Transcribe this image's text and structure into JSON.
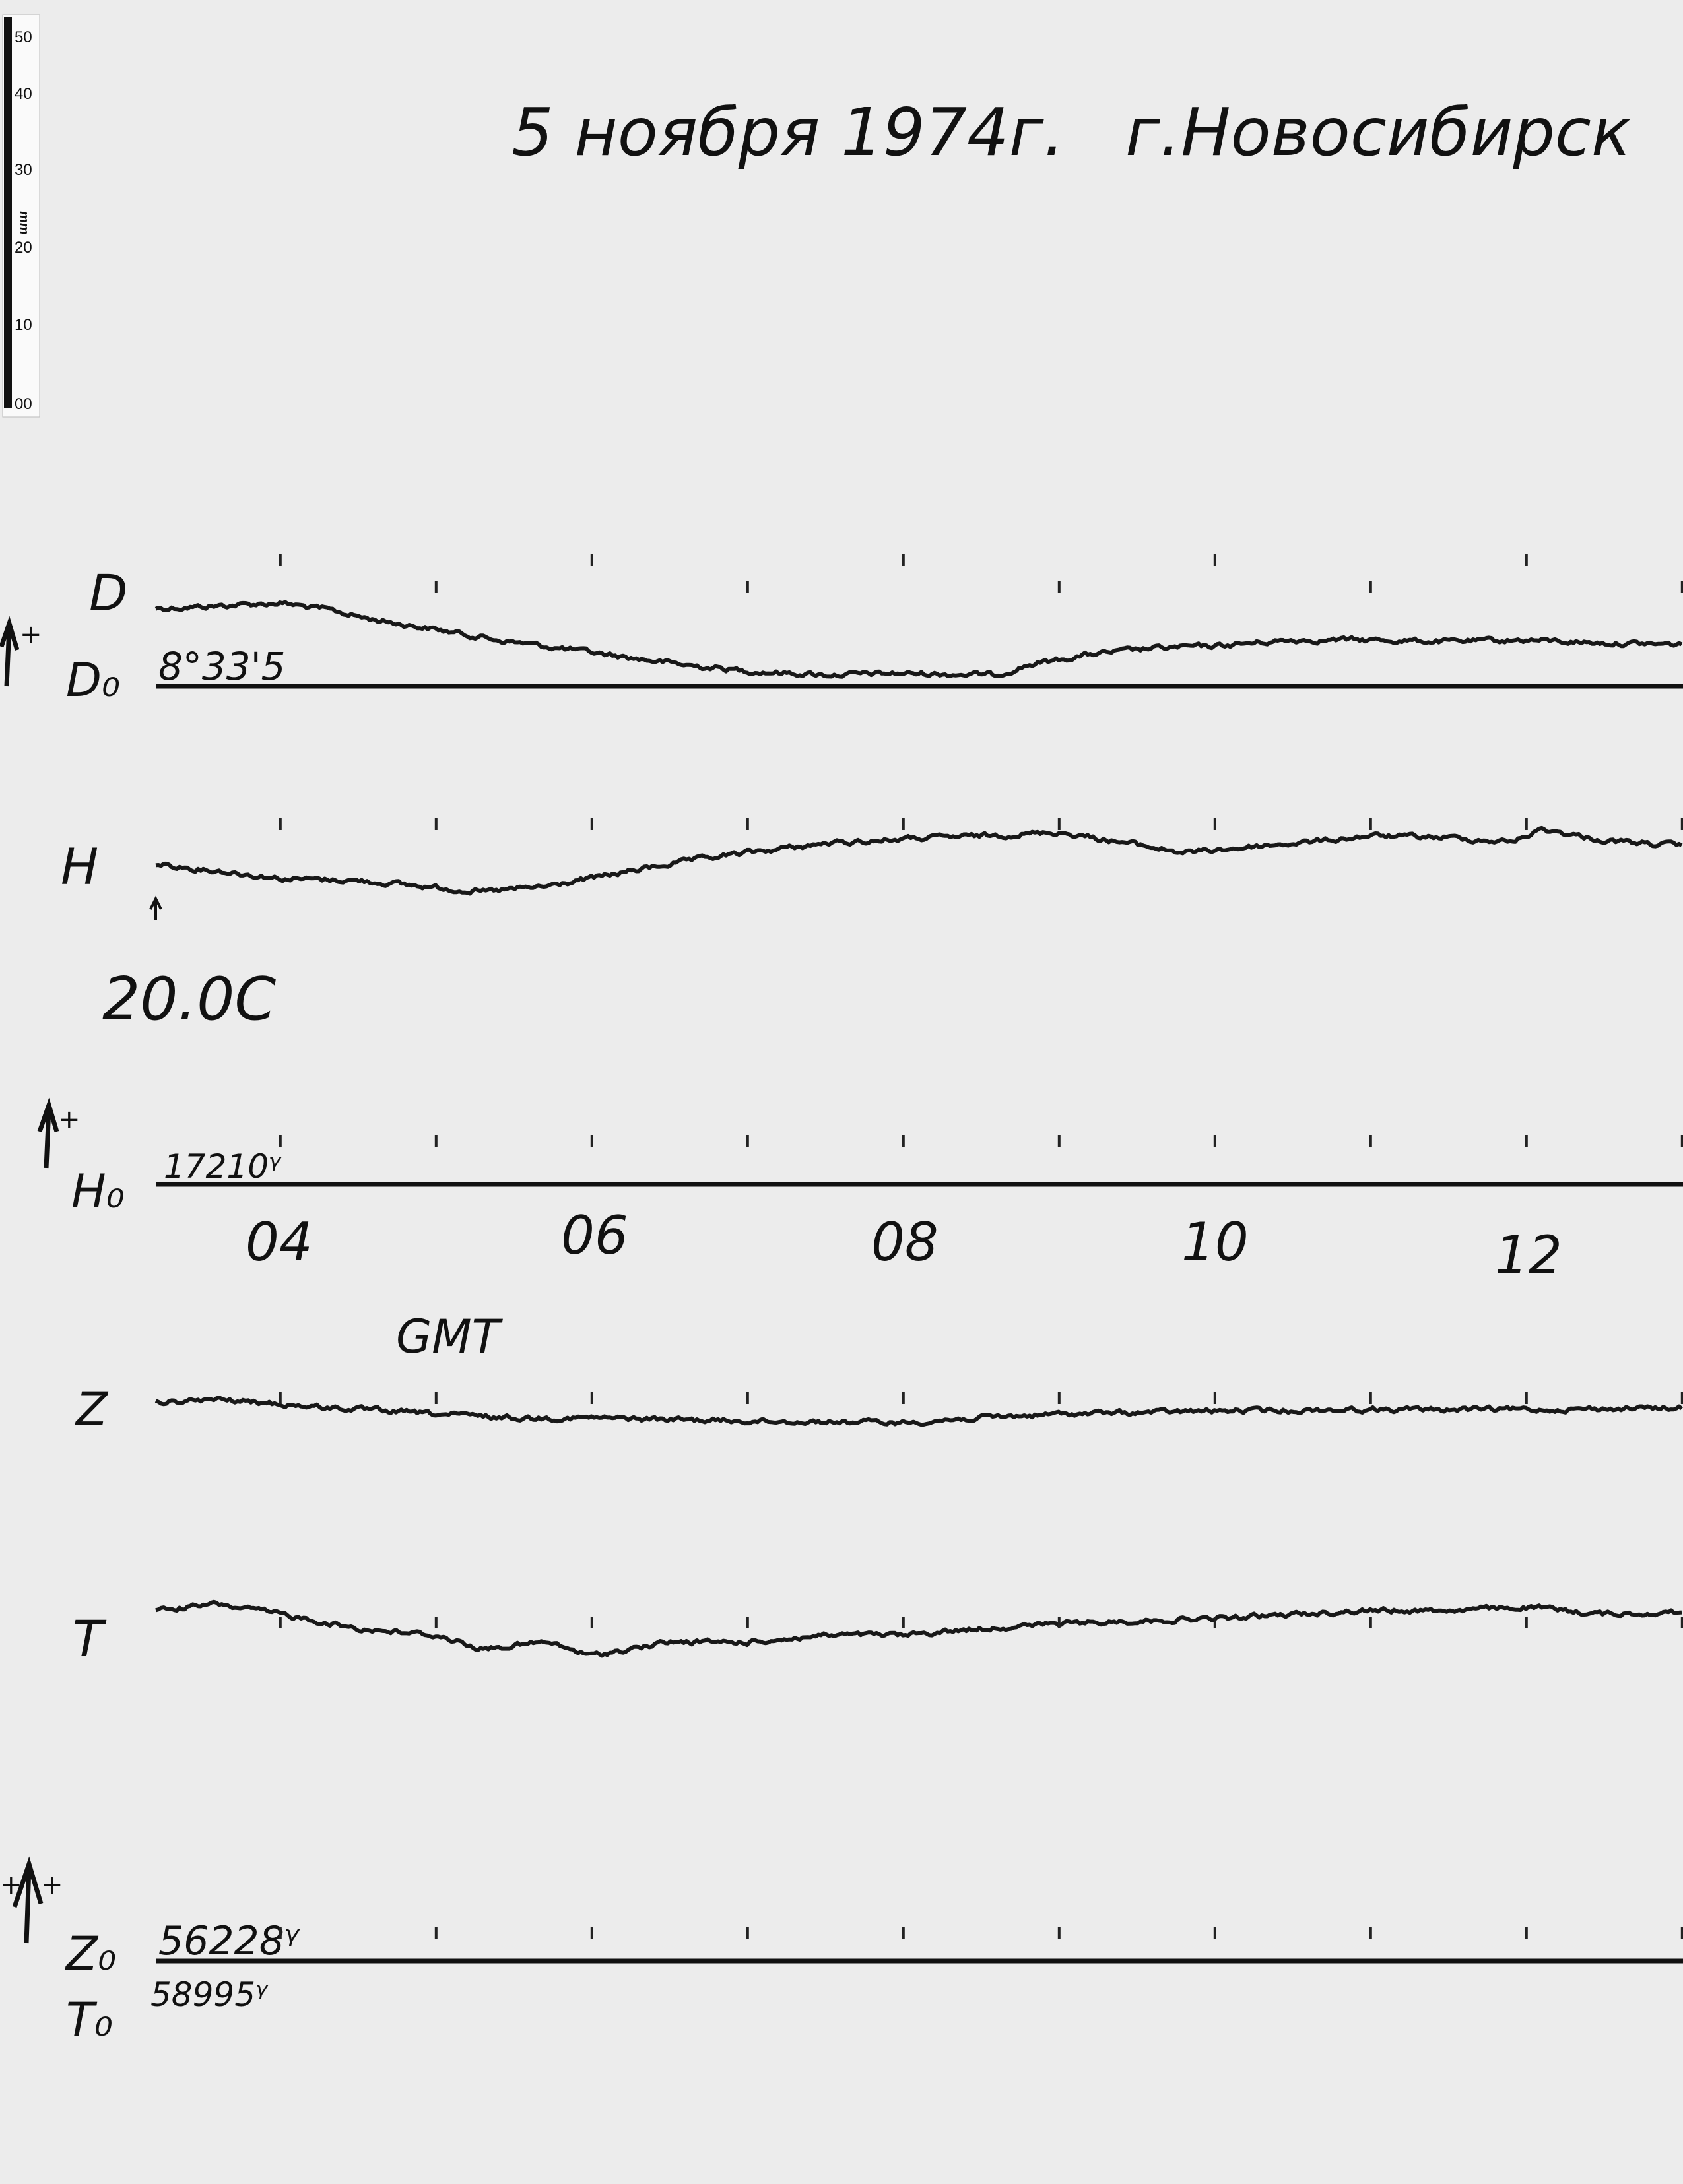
{
  "header": {
    "date": "5 ноября 1974г.",
    "city": "г.Новосибирск"
  },
  "ruler": {
    "unit": "mm",
    "ticks": [
      "00",
      "10",
      "20",
      "30",
      "40",
      "50"
    ]
  },
  "labels": {
    "D": "D",
    "D0": "D₀",
    "D0_value": "8°33'5",
    "H": "H",
    "temperature": "20.0C",
    "H0": "H₀",
    "H0_value": "17210ᵞ",
    "time_axis": "GMT",
    "Z": "Z",
    "T": "T",
    "Z0": "Z₀",
    "Z0_value": "56228ᵞ",
    "T0": "T₀",
    "T0_value": "58995ᵞ",
    "plus": "+"
  },
  "chart_data": {
    "type": "line",
    "xlabel": "GMT",
    "x_ticks": [
      "04",
      "06",
      "08",
      "10",
      "12"
    ],
    "xlim": [
      3.2,
      13.0
    ],
    "y_unit": "mm deflection above baseline (per mm ruler)",
    "series": [
      {
        "name": "D",
        "baseline": "D₀",
        "x": [
          3.2,
          3.5,
          4.0,
          4.3,
          4.6,
          5.0,
          5.4,
          5.8,
          6.2,
          6.6,
          7.0,
          7.5,
          8.0,
          8.6,
          8.8,
          9.2,
          9.6,
          10.0,
          10.5,
          11.0,
          11.5,
          12.0,
          12.5,
          13.0
        ],
        "y": [
          10.3,
          10.5,
          11.0,
          10.1,
          8.8,
          7.5,
          6.1,
          5.0,
          3.9,
          2.8,
          2.0,
          1.5,
          1.7,
          1.5,
          2.8,
          4.2,
          5.0,
          5.3,
          6.1,
          6.1,
          5.9,
          6.1,
          5.7,
          5.5
        ]
      },
      {
        "name": "H",
        "baseline": "H₀",
        "x": [
          3.2,
          3.6,
          4.0,
          4.5,
          5.0,
          5.3,
          5.7,
          6.0,
          6.5,
          7.0,
          7.5,
          8.0,
          8.5,
          9.0,
          9.4,
          9.8,
          10.2,
          10.6,
          11.0,
          11.5,
          11.9,
          12.1,
          12.5,
          13.0
        ],
        "y": [
          42.3,
          41.4,
          40.4,
          40.1,
          39.2,
          38.6,
          39.3,
          40.4,
          42.3,
          43.8,
          45.0,
          45.6,
          46.0,
          46.5,
          45.2,
          43.8,
          44.5,
          45.2,
          46.0,
          45.8,
          45.2,
          46.9,
          45.4,
          44.7
        ]
      },
      {
        "name": "Z",
        "baseline": "Z₀",
        "x": [
          3.2,
          3.6,
          4.0,
          4.5,
          5.0,
          5.5,
          6.0,
          7.0,
          8.0,
          8.5,
          9.0,
          10.0,
          11.0,
          12.0,
          13.0
        ],
        "y": [
          73.7,
          74.1,
          73.5,
          72.8,
          72.2,
          71.7,
          71.7,
          71.3,
          71.1,
          71.7,
          72.2,
          72.6,
          72.8,
          72.8,
          73.0
        ]
      },
      {
        "name": "T",
        "baseline": "Z₀",
        "x": [
          3.2,
          3.6,
          4.0,
          4.5,
          5.0,
          5.3,
          5.7,
          6.0,
          6.5,
          7.0,
          7.5,
          8.0,
          8.5,
          9.0,
          9.5,
          10.0,
          11.0,
          11.5,
          12.0,
          12.5,
          13.0
        ],
        "y": [
          46.3,
          47.1,
          45.8,
          43.9,
          43.0,
          41.2,
          42.1,
          40.3,
          42.1,
          42.1,
          43.0,
          43.0,
          43.9,
          44.5,
          44.9,
          45.2,
          46.3,
          46.3,
          46.7,
          45.8,
          46.1
        ]
      }
    ],
    "colors": {
      "paper": "#ececec",
      "ink": "#111111"
    }
  }
}
